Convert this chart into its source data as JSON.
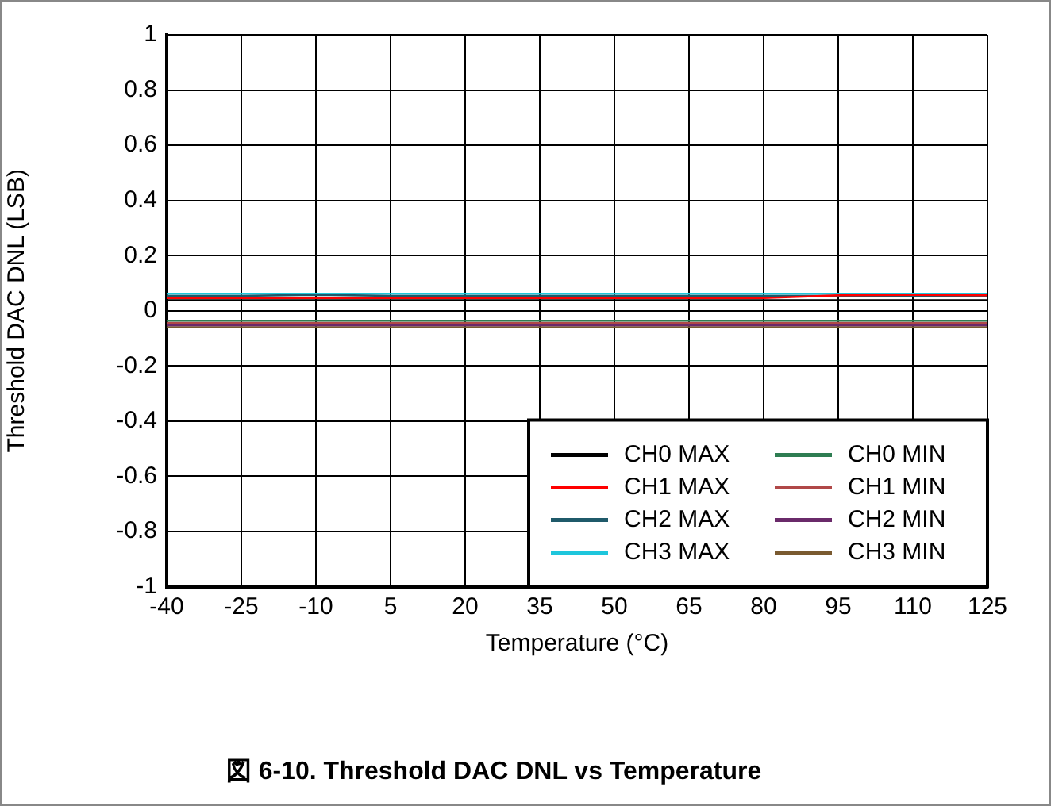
{
  "chart_data": {
    "type": "line",
    "title": "図 6-10. Threshold DAC DNL vs Temperature",
    "xlabel": "Temperature (°C)",
    "ylabel": "Threshold DAC DNL (LSB)",
    "x": [
      -40,
      -25,
      -10,
      5,
      20,
      35,
      50,
      65,
      80,
      95,
      110,
      125
    ],
    "xlim": [
      -40,
      125
    ],
    "xticks": [
      -40,
      -25,
      -10,
      5,
      20,
      35,
      50,
      65,
      80,
      95,
      110,
      125
    ],
    "ylim": [
      -1,
      1
    ],
    "yticks": [
      -1,
      -0.8,
      -0.6,
      -0.4,
      -0.2,
      0,
      0.2,
      0.4,
      0.6,
      0.8,
      1
    ],
    "grid": true,
    "legend": "bottom right",
    "marker": "none",
    "line_style": "solid",
    "series": [
      {
        "name": "CH0 MAX",
        "color": "#000000",
        "values": [
          0.038,
          0.038,
          0.038,
          0.038,
          0.038,
          0.038,
          0.038,
          0.038,
          0.038,
          0.038,
          0.038,
          0.038
        ]
      },
      {
        "name": "CH0 MIN",
        "color": "#2e7d52",
        "values": [
          -0.036,
          -0.036,
          -0.036,
          -0.036,
          -0.036,
          -0.036,
          -0.036,
          -0.036,
          -0.036,
          -0.036,
          -0.036,
          -0.036
        ]
      },
      {
        "name": "CH1 MAX",
        "color": "#ff0000",
        "values": [
          0.046,
          0.046,
          0.046,
          0.046,
          0.046,
          0.046,
          0.046,
          0.046,
          0.046,
          0.056,
          0.058,
          0.056
        ]
      },
      {
        "name": "CH1 MIN",
        "color": "#b04848",
        "values": [
          -0.044,
          -0.044,
          -0.044,
          -0.044,
          -0.044,
          -0.044,
          -0.044,
          -0.044,
          -0.044,
          -0.044,
          -0.044,
          -0.044
        ]
      },
      {
        "name": "CH2 MAX",
        "color": "#1f5a6a",
        "values": [
          0.054,
          0.054,
          0.058,
          0.054,
          0.054,
          0.054,
          0.054,
          0.054,
          0.054,
          0.054,
          0.054,
          0.054
        ]
      },
      {
        "name": "CH2 MIN",
        "color": "#6a2a6a",
        "values": [
          -0.052,
          -0.052,
          -0.052,
          -0.052,
          -0.052,
          -0.052,
          -0.052,
          -0.052,
          -0.052,
          -0.052,
          -0.052,
          -0.052
        ]
      },
      {
        "name": "CH3 MAX",
        "color": "#1ec6dc",
        "values": [
          0.062,
          0.062,
          0.062,
          0.062,
          0.062,
          0.062,
          0.062,
          0.062,
          0.062,
          0.062,
          0.062,
          0.062
        ]
      },
      {
        "name": "CH3 MIN",
        "color": "#7a5a30",
        "values": [
          -0.06,
          -0.06,
          -0.06,
          -0.06,
          -0.06,
          -0.06,
          -0.06,
          -0.06,
          -0.06,
          -0.06,
          -0.06,
          -0.06
        ]
      }
    ]
  }
}
